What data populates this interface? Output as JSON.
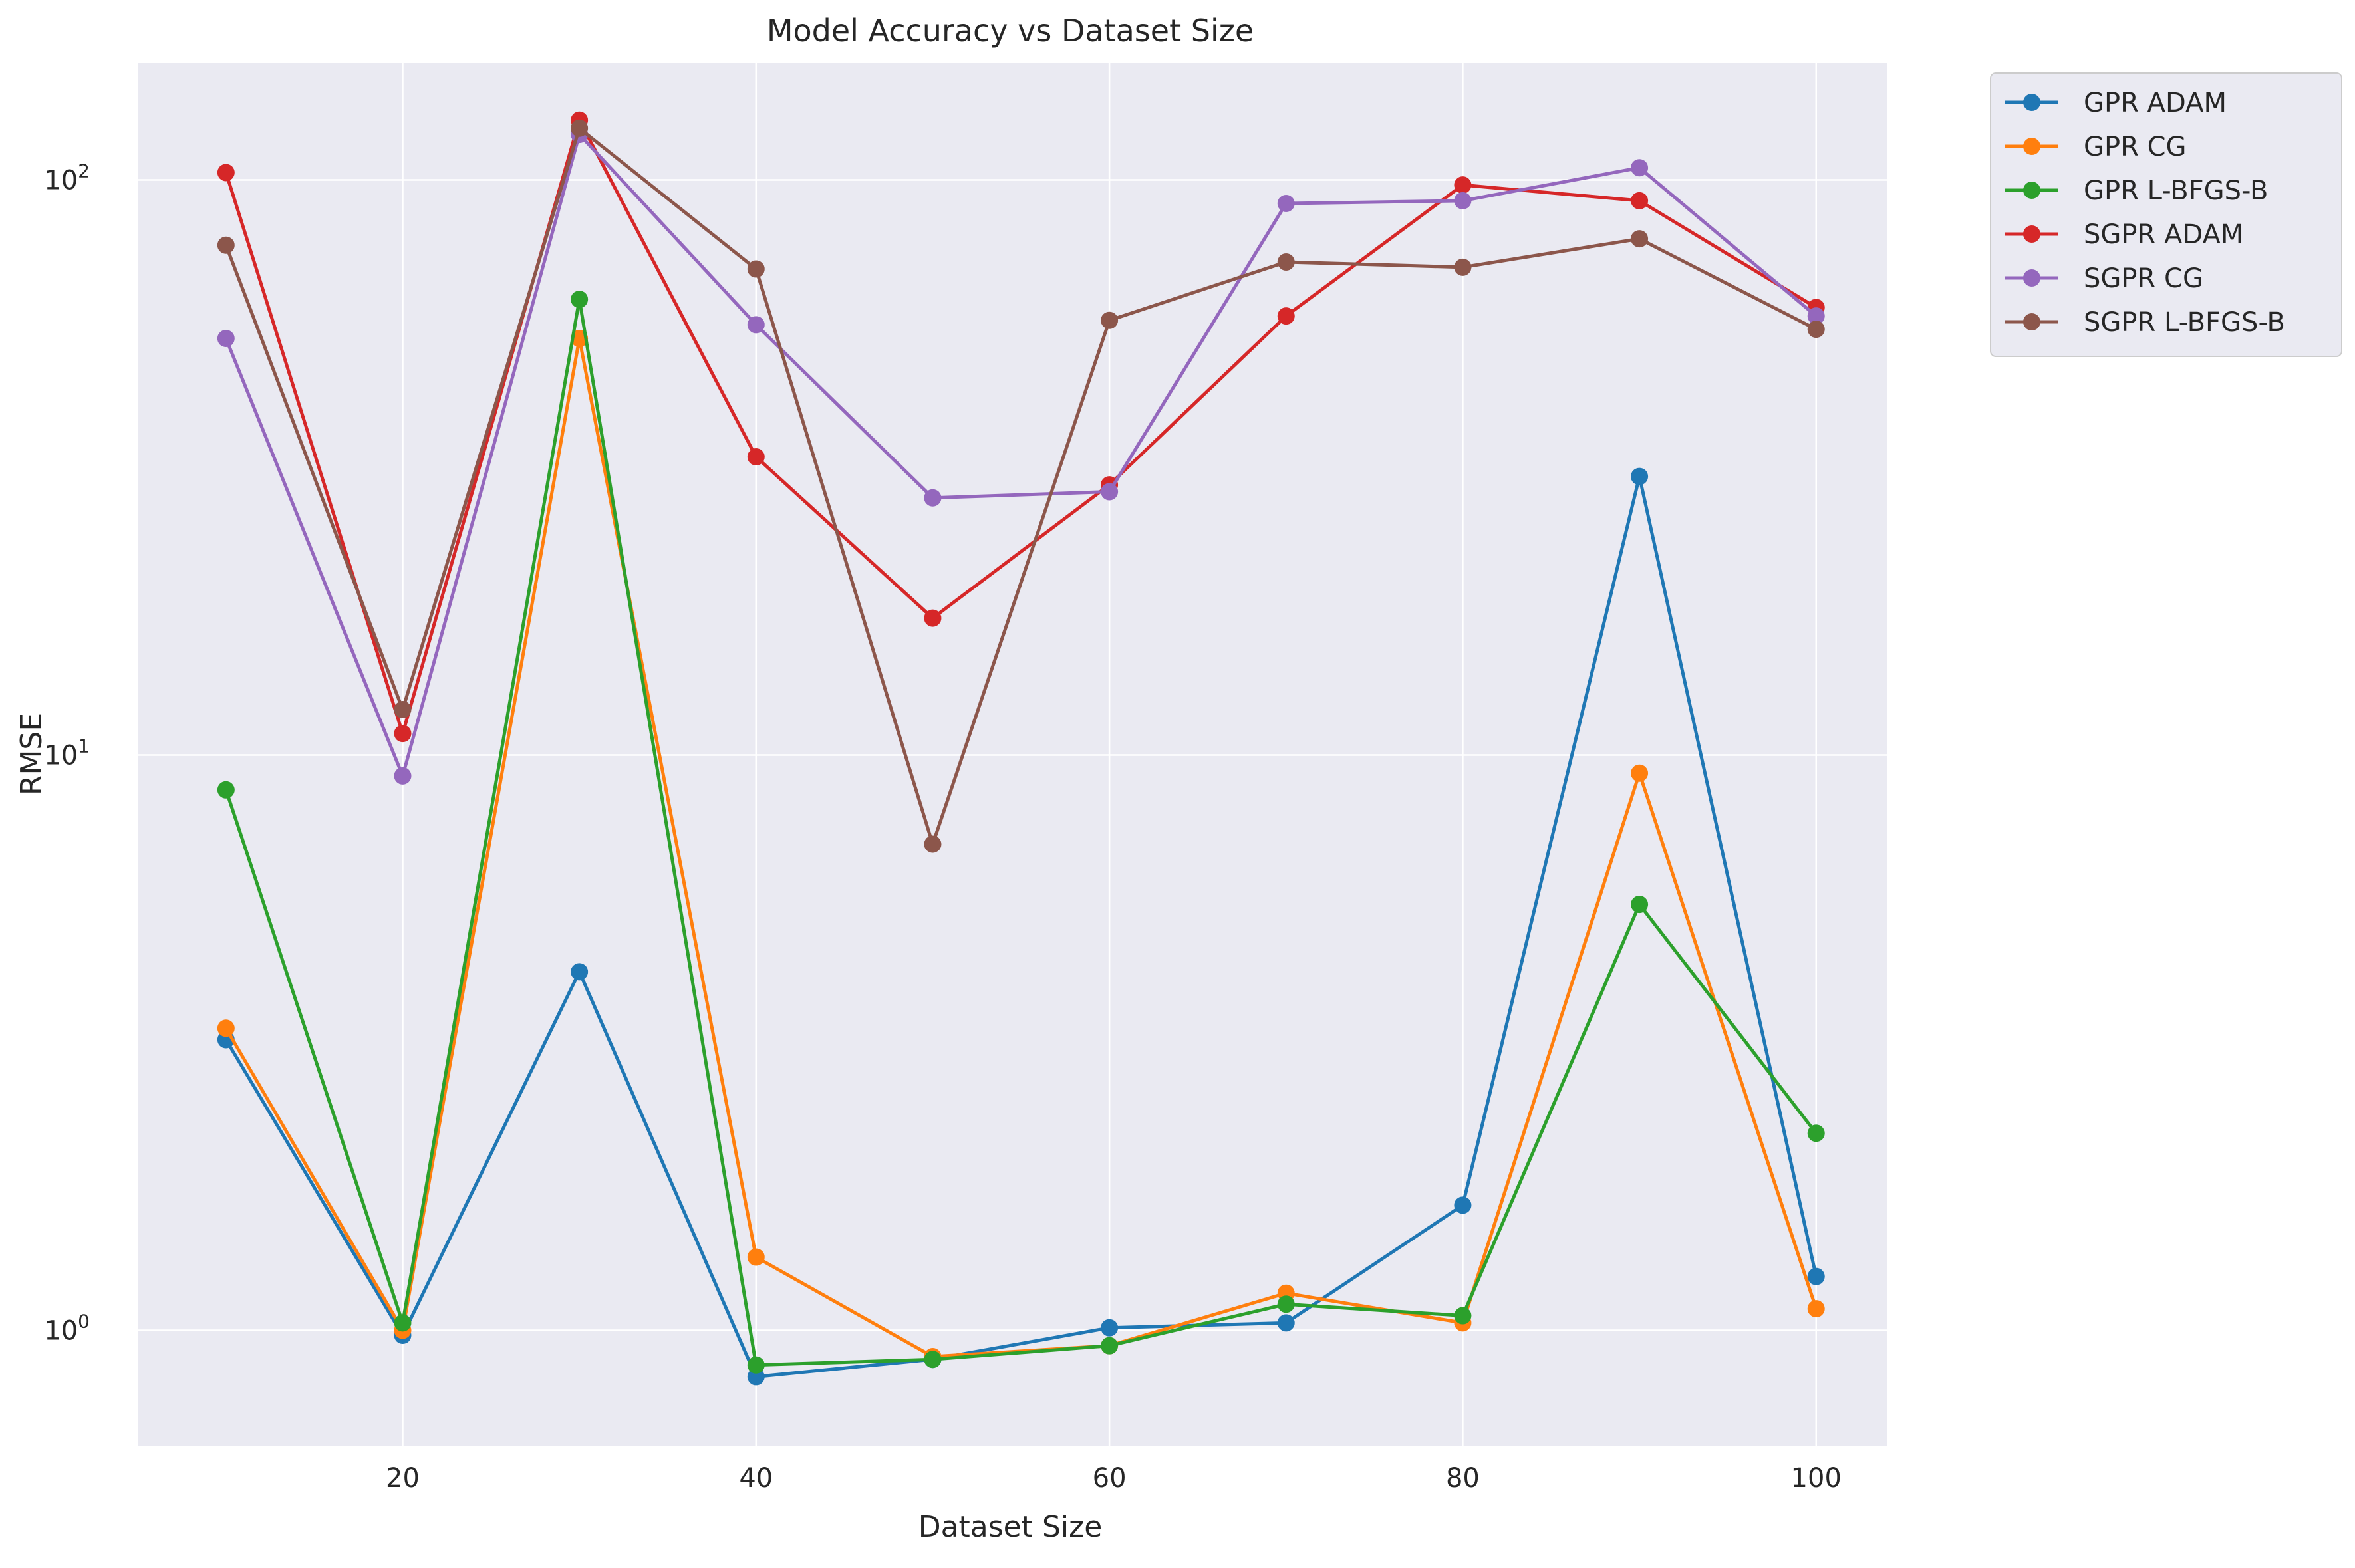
{
  "chart_data": {
    "type": "line",
    "title": "Model Accuracy vs Dataset Size",
    "xlabel": "Dataset Size",
    "ylabel": "RMSE",
    "yscale": "log",
    "xlim": [
      5,
      104
    ],
    "ylim": [
      0.63,
      160
    ],
    "grid": true,
    "legend_position": "outside-top-right",
    "x": [
      10,
      20,
      30,
      40,
      50,
      60,
      70,
      80,
      90,
      100
    ],
    "x_ticks": [
      20,
      40,
      60,
      80,
      100
    ],
    "y_ticks": [
      {
        "value": 1,
        "base": "10",
        "exp": "0"
      },
      {
        "value": 10,
        "base": "10",
        "exp": "1"
      },
      {
        "value": 100,
        "base": "10",
        "exp": "2"
      }
    ],
    "series": [
      {
        "name": "GPR ADAM",
        "color": "#1f77b4",
        "values": [
          3.2,
          0.98,
          4.2,
          0.83,
          0.89,
          1.01,
          1.03,
          1.65,
          30.5,
          1.24
        ]
      },
      {
        "name": "GPR CG",
        "color": "#ff7f0e",
        "values": [
          3.35,
          1.0,
          53,
          1.34,
          0.9,
          0.94,
          1.16,
          1.03,
          9.3,
          1.09
        ]
      },
      {
        "name": "GPR L-BFGS-B",
        "color": "#2ca02c",
        "values": [
          8.7,
          1.03,
          62,
          0.87,
          0.89,
          0.94,
          1.11,
          1.06,
          5.5,
          2.2
        ]
      },
      {
        "name": "SGPR ADAM",
        "color": "#d62728",
        "values": [
          103,
          10.9,
          127,
          33,
          17.3,
          29.5,
          58,
          98,
          92,
          60
        ]
      },
      {
        "name": "SGPR CG",
        "color": "#9467bd",
        "values": [
          53,
          9.2,
          120,
          56,
          28,
          28.7,
          91,
          92,
          105,
          58
        ]
      },
      {
        "name": "SGPR L-BFGS-B",
        "color": "#8c564b",
        "values": [
          77,
          12,
          123,
          70,
          7,
          57,
          72,
          70.5,
          79,
          55
        ]
      }
    ]
  }
}
